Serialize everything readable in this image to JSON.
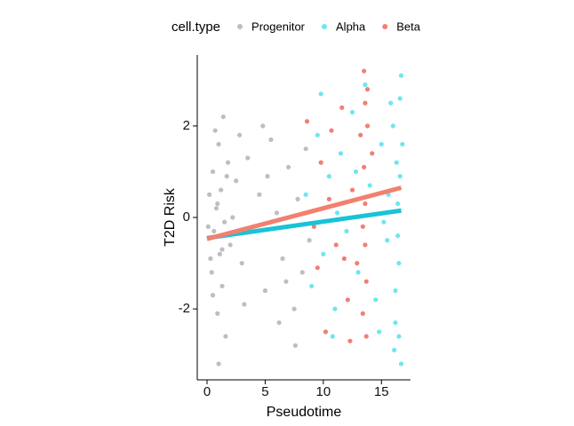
{
  "chart_data": {
    "type": "scatter",
    "xlabel": "Pseudotime",
    "ylabel": "T2D Risk",
    "legend_title": "cell.type",
    "legend_position": "top",
    "xlim": [
      -0.84,
      17.5
    ],
    "ylim": [
      -3.55,
      3.55
    ],
    "xticks": [
      0,
      5,
      10,
      15
    ],
    "yticks": [
      -2,
      0,
      2
    ],
    "series": [
      {
        "name": "Progenitor",
        "color": "#bebebe",
        "x": [
          0.2,
          0.4,
          0.5,
          0.6,
          0.8,
          0.9,
          1.0,
          1.1,
          1.2,
          1.3,
          1.4,
          1.5,
          1.6,
          1.8,
          2.0,
          0.3,
          0.7,
          1.0,
          1.2,
          0.1,
          2.5,
          3.0,
          3.5,
          4.0,
          4.5,
          5.0,
          5.5,
          6.0,
          6.5,
          7.0,
          7.5,
          7.8,
          8.2,
          8.5,
          8.8,
          3.2,
          4.8,
          6.2,
          7.6,
          2.2,
          1.7,
          0.9,
          0.5,
          1.3,
          2.8,
          5.2,
          6.8
        ],
        "values": [
          0.5,
          -1.2,
          1.0,
          -0.3,
          0.2,
          -2.1,
          1.6,
          -0.8,
          0.6,
          -1.5,
          2.2,
          -0.1,
          -2.6,
          1.2,
          -0.6,
          -0.9,
          1.9,
          -3.2,
          -0.4,
          -0.2,
          0.8,
          -1.0,
          1.3,
          -0.2,
          0.5,
          -1.6,
          1.7,
          0.1,
          -0.9,
          1.1,
          -2.0,
          0.4,
          -1.2,
          1.5,
          -0.5,
          -1.9,
          2.0,
          -2.3,
          -2.8,
          0.0,
          0.9,
          0.3,
          -1.7,
          -0.7,
          1.8,
          0.9,
          -1.4
        ]
      },
      {
        "name": "Alpha",
        "color": "#6ee6f0",
        "x": [
          8.5,
          9,
          9.5,
          10,
          10.5,
          11,
          11.5,
          12,
          12.5,
          13,
          14,
          14.5,
          15,
          15.5,
          16,
          16.2,
          16.4,
          16.5,
          16.6,
          16.7,
          16.3,
          16.5,
          16.6,
          16.4,
          16.7,
          16.2,
          9.8,
          10.8,
          12.8,
          13.6,
          14.8,
          15.8,
          11.2,
          15.2,
          16.8,
          16.1,
          15.6
        ],
        "values": [
          0.5,
          -1.5,
          1.8,
          -0.8,
          0.9,
          -2.0,
          1.4,
          -0.3,
          2.3,
          -1.2,
          0.7,
          -1.8,
          1.6,
          -0.5,
          2.0,
          -2.3,
          0.3,
          -1.0,
          2.6,
          -3.2,
          1.2,
          -2.6,
          0.9,
          -0.4,
          3.1,
          -1.6,
          2.7,
          -2.6,
          1.0,
          2.9,
          -2.5,
          2.5,
          0.1,
          -0.1,
          1.6,
          -2.9,
          0.5
        ]
      },
      {
        "name": "Beta",
        "color": "#f08072",
        "x": [
          8.6,
          9.2,
          9.8,
          10.2,
          10.7,
          11.1,
          11.6,
          12.1,
          12.5,
          12.9,
          13.2,
          13.4,
          13.5,
          13.6,
          13.7,
          13.8,
          13.6,
          13.5,
          13.7,
          13.8,
          13.4,
          13.6,
          12.3,
          11.8,
          10.5,
          9.5,
          14.2
        ],
        "values": [
          2.1,
          -0.2,
          1.2,
          -2.5,
          1.9,
          -0.6,
          2.4,
          -1.8,
          0.6,
          -1.0,
          1.8,
          -2.1,
          3.2,
          0.3,
          -1.4,
          2.8,
          -0.6,
          1.1,
          -2.6,
          2.0,
          -0.2,
          2.5,
          -2.7,
          -0.9,
          0.4,
          -1.1,
          1.4
        ]
      }
    ],
    "trend_lines": [
      {
        "color": "#18c3d7",
        "x": [
          0,
          16.7
        ],
        "values": [
          -0.45,
          0.15
        ]
      },
      {
        "color": "#f2806f",
        "x": [
          0,
          16.7
        ],
        "values": [
          -0.47,
          0.65
        ]
      }
    ]
  }
}
